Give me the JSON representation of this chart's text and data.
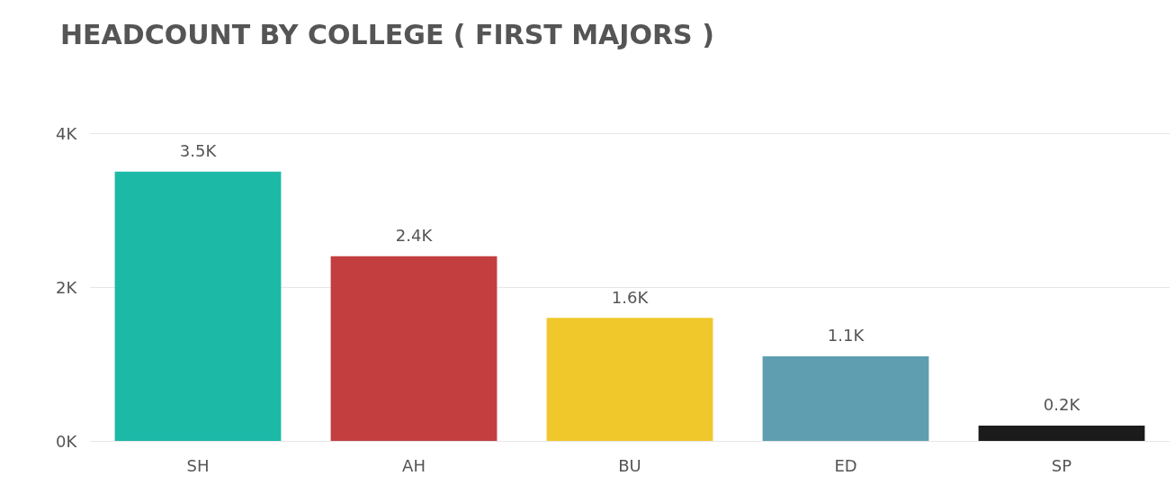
{
  "chart_data": {
    "type": "bar",
    "title": "HEADCOUNT BY COLLEGE ( FIRST MAJORS )",
    "categories": [
      "SH",
      "AH",
      "BU",
      "ED",
      "SP"
    ],
    "values": [
      3500,
      2400,
      1600,
      1100,
      200
    ],
    "colors": [
      "#1cb9a7",
      "#c33e3f",
      "#f1c82b",
      "#5e9eb0",
      "#1b1b1b"
    ],
    "value_labels": [
      "3.5K",
      "2.4K",
      "1.6K",
      "1.1K",
      "0.2K"
    ],
    "ylim": [
      0,
      4000
    ],
    "yticks": [
      {
        "value": 0,
        "label": "0K"
      },
      {
        "value": 2000,
        "label": "2K"
      },
      {
        "value": 4000,
        "label": "4K"
      }
    ],
    "grid": "y"
  }
}
